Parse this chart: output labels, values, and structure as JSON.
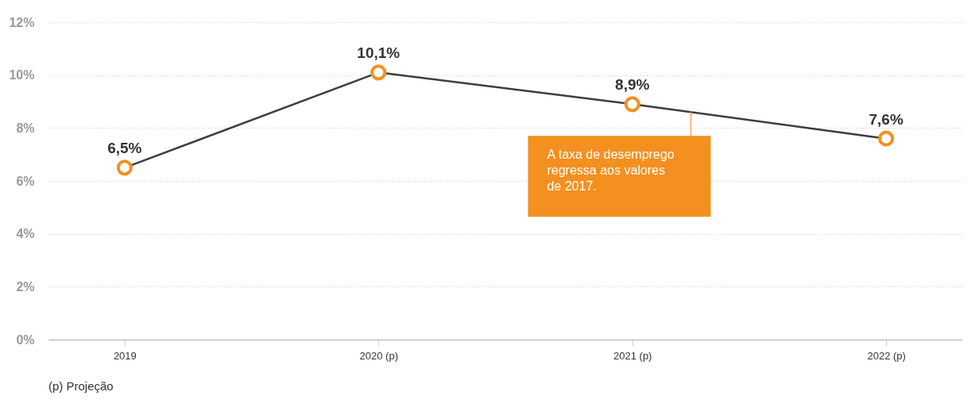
{
  "chart_data": {
    "type": "line",
    "categories": [
      "2019",
      "2020 (p)",
      "2021 (p)",
      "2022 (p)"
    ],
    "series": [
      {
        "color": "#3d3d3d",
        "values": [
          6.5,
          10.1,
          8.9,
          7.6
        ],
        "value_labels": [
          "6,5%",
          "10,1%",
          "8,9%",
          "7,6%"
        ]
      }
    ],
    "marker": "circle",
    "ylim": [
      0,
      12
    ],
    "yticks": [
      {
        "value": 0,
        "label": "0%"
      },
      {
        "value": 2,
        "label": "2%"
      },
      {
        "value": 4,
        "label": "4%"
      },
      {
        "value": 6,
        "label": "6%"
      },
      {
        "value": 8,
        "label": "8%"
      },
      {
        "value": 10,
        "label": "10%"
      },
      {
        "value": 12,
        "label": "12%"
      }
    ],
    "grid": "y",
    "annotations": [
      "A taxa de desemprego regressa aos valores de 2017.",
      "(p) Projeção"
    ]
  }
}
